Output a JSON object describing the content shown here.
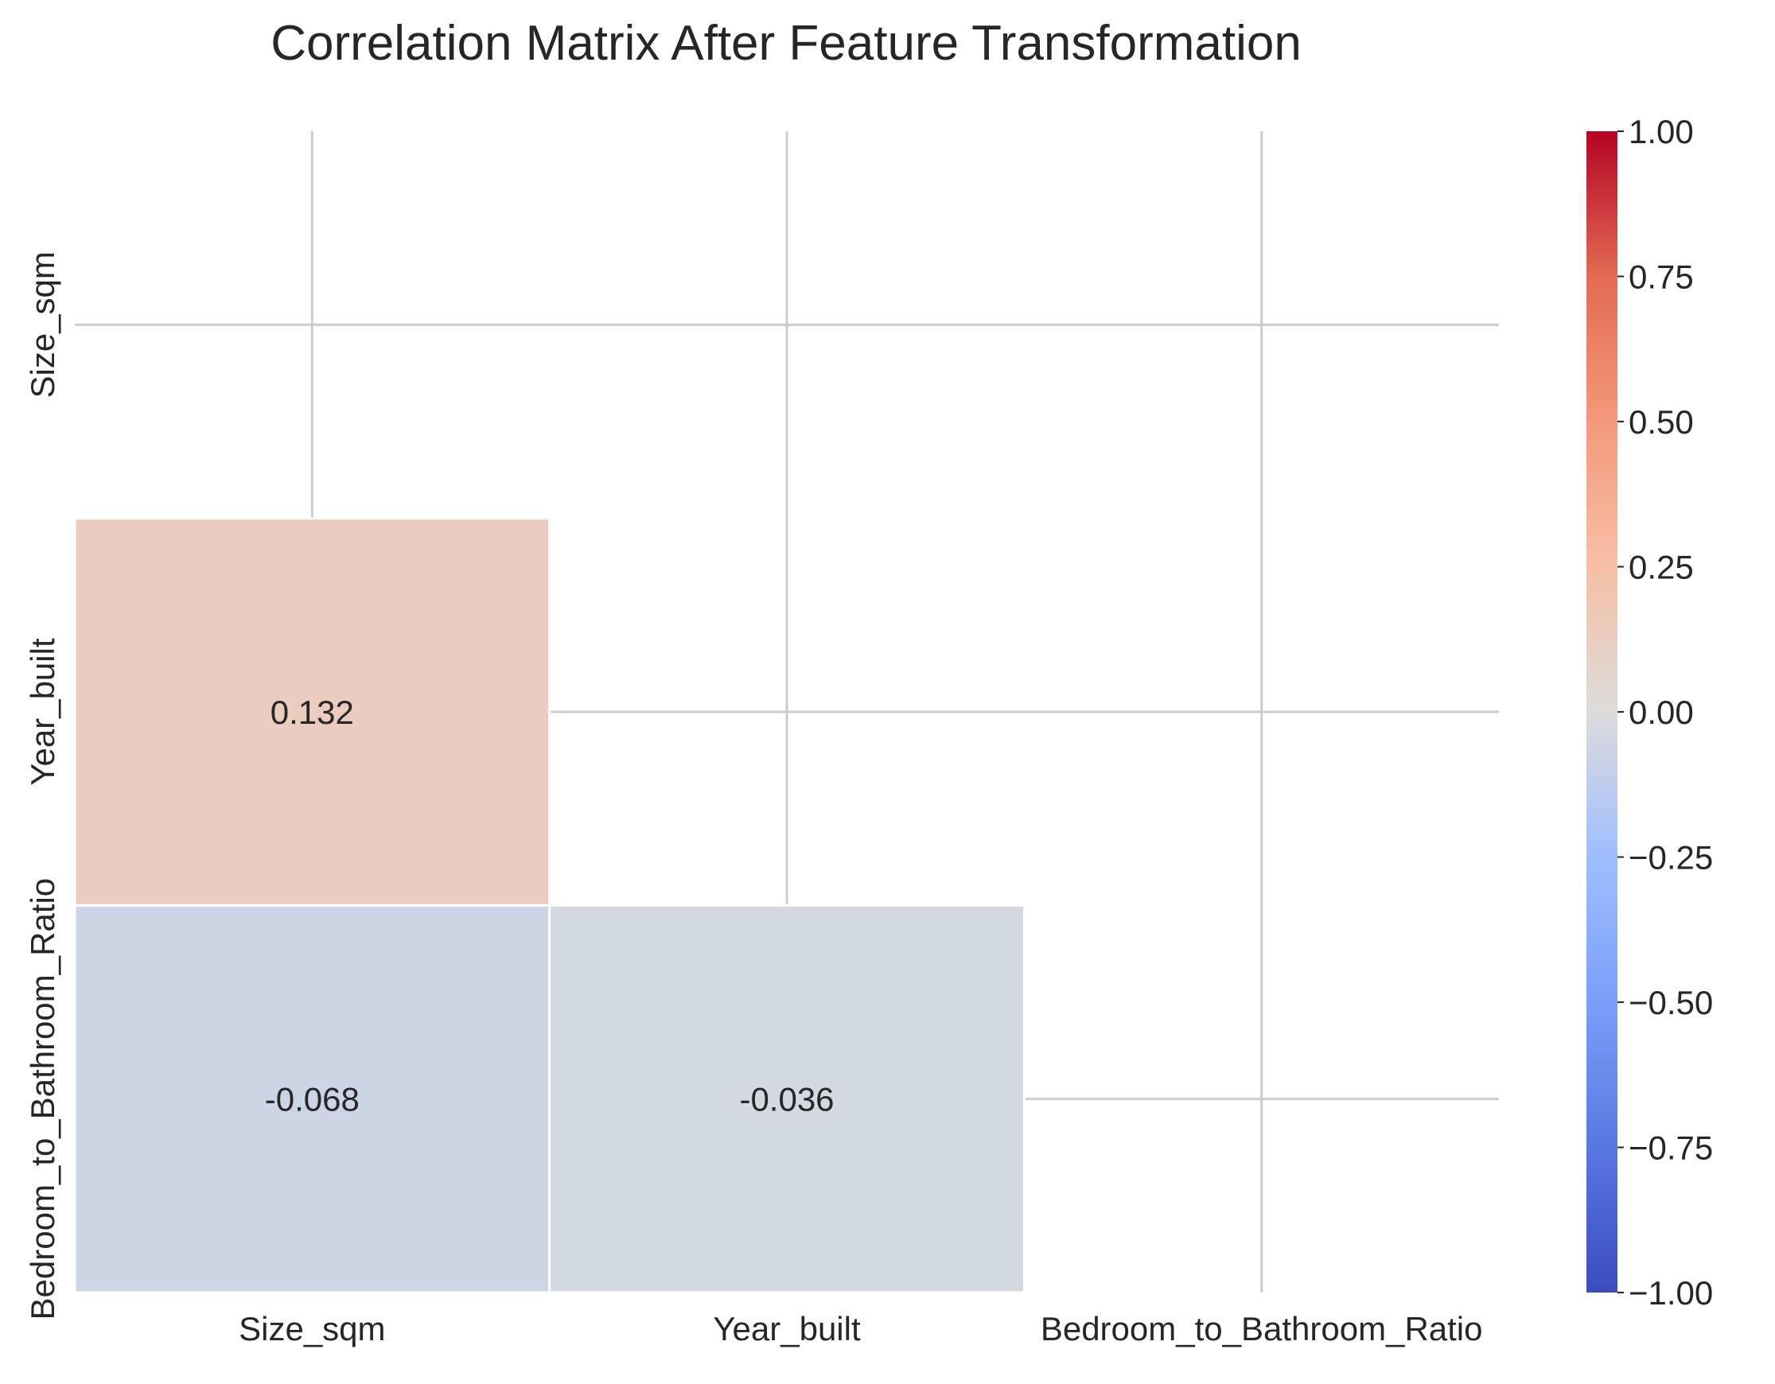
{
  "chart_data": {
    "type": "heatmap",
    "title": "Correlation Matrix After Feature Transformation",
    "variables": [
      "Size_sqm",
      "Year_built",
      "Bedroom_to_Bathroom_Ratio"
    ],
    "mask": "upper triangle including diagonal",
    "cells": [
      {
        "row": "Year_built",
        "col": "Size_sqm",
        "value": 0.132,
        "label": "0.132"
      },
      {
        "row": "Bedroom_to_Bathroom_Ratio",
        "col": "Size_sqm",
        "value": -0.068,
        "label": "-0.068"
      },
      {
        "row": "Bedroom_to_Bathroom_Ratio",
        "col": "Year_built",
        "value": -0.036,
        "label": "-0.036"
      }
    ],
    "colormap": "coolwarm",
    "vmin": -1.0,
    "vmax": 1.0,
    "colorbar_ticks": [
      {
        "value": 1.0,
        "label": "1.00"
      },
      {
        "value": 0.75,
        "label": "0.75"
      },
      {
        "value": 0.5,
        "label": "0.50"
      },
      {
        "value": 0.25,
        "label": "0.25"
      },
      {
        "value": 0.0,
        "label": "0.00"
      },
      {
        "value": -0.25,
        "label": "−0.25"
      },
      {
        "value": -0.5,
        "label": "−0.50"
      },
      {
        "value": -0.75,
        "label": "−0.75"
      },
      {
        "value": -1.0,
        "label": "−1.00"
      }
    ],
    "grid": true,
    "colors": {
      "cell_border": "#ffffff",
      "grid": "#cccccc",
      "text": "#262626"
    }
  }
}
